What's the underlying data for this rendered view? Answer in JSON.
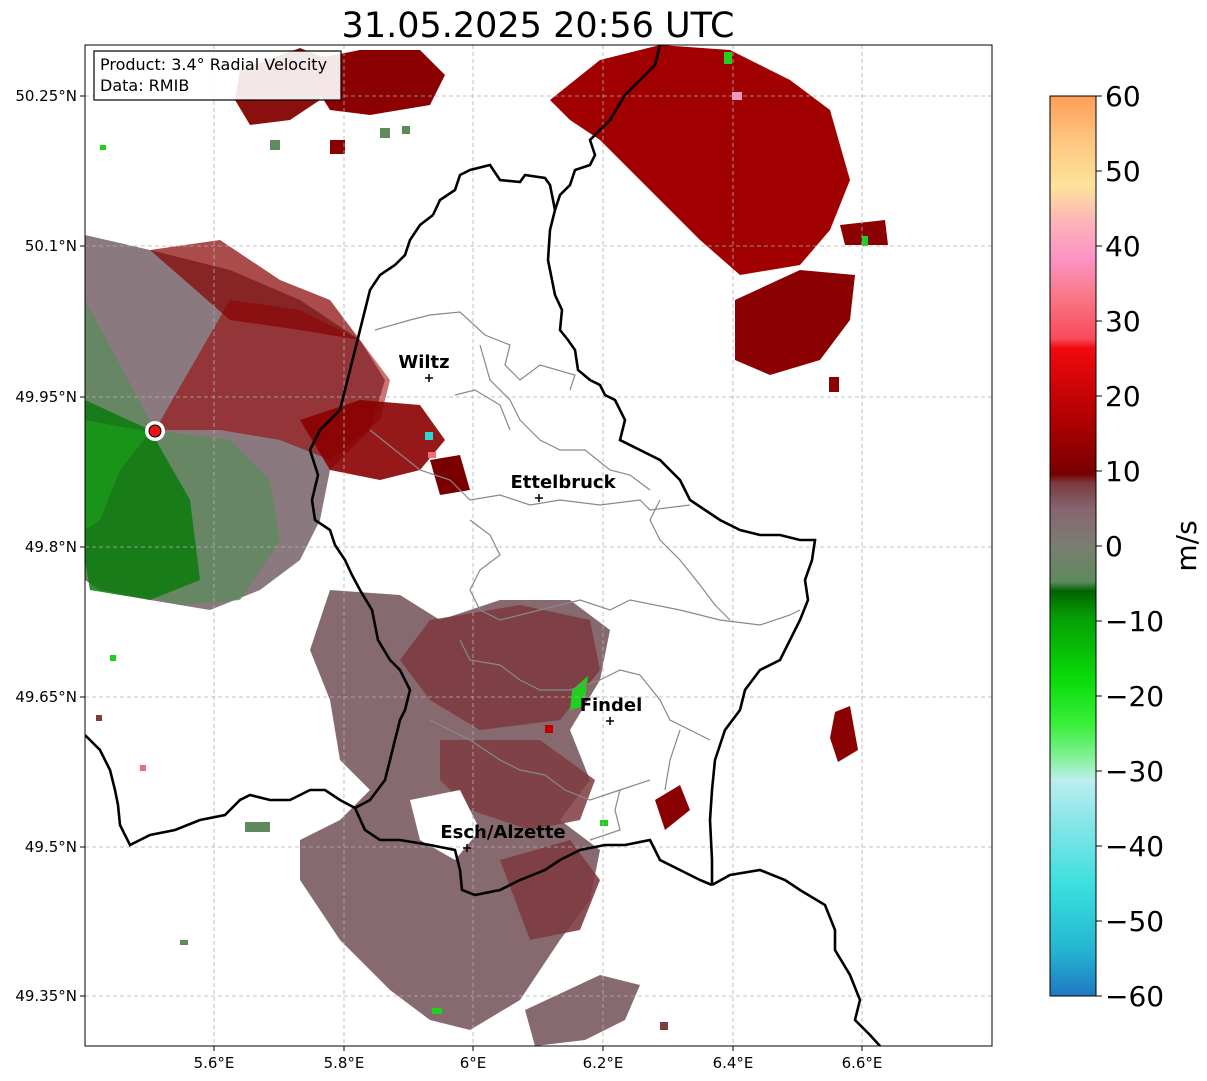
{
  "title": "31.05.2025 20:56 UTC",
  "info": {
    "product": "Product: 3.4° Radial Velocity",
    "source": "Data: RMIB"
  },
  "map": {
    "lon_range": [
      5.4,
      6.8
    ],
    "lat_range": [
      49.3,
      50.3
    ],
    "lon_ticks": [
      "5.6°E",
      "5.8°E",
      "6°E",
      "6.2°E",
      "6.4°E",
      "6.6°E"
    ],
    "lat_ticks": [
      "50.25°N",
      "50.1°N",
      "49.95°N",
      "49.8°N",
      "49.65°N",
      "49.5°N",
      "49.35°N"
    ],
    "grid": true,
    "radar_site_color": "#e8161a",
    "cities": [
      {
        "name": "Wiltz",
        "lon": 5.93,
        "lat": 49.97
      },
      {
        "name": "Ettelbruck",
        "lon": 6.1,
        "lat": 49.85
      },
      {
        "name": "Findel",
        "lon": 6.22,
        "lat": 49.63
      },
      {
        "name": "Esch/Alzette",
        "lon": 5.99,
        "lat": 49.5
      }
    ]
  },
  "colorbar": {
    "label": "m/s",
    "range": [
      -60,
      60
    ],
    "tick_labels": [
      "60",
      "50",
      "40",
      "30",
      "20",
      "10",
      "0",
      "−10",
      "−20",
      "−30",
      "−40",
      "−50",
      "−60"
    ]
  },
  "colors": {
    "inbound_strong": "#0a7a0a",
    "inbound_weak": "#5e8a5e",
    "neutral": "#866a70",
    "outbound_weak": "#7e3c40",
    "outbound_strong": "#9c0000",
    "border": "#000000",
    "district_lines": "#888888"
  }
}
